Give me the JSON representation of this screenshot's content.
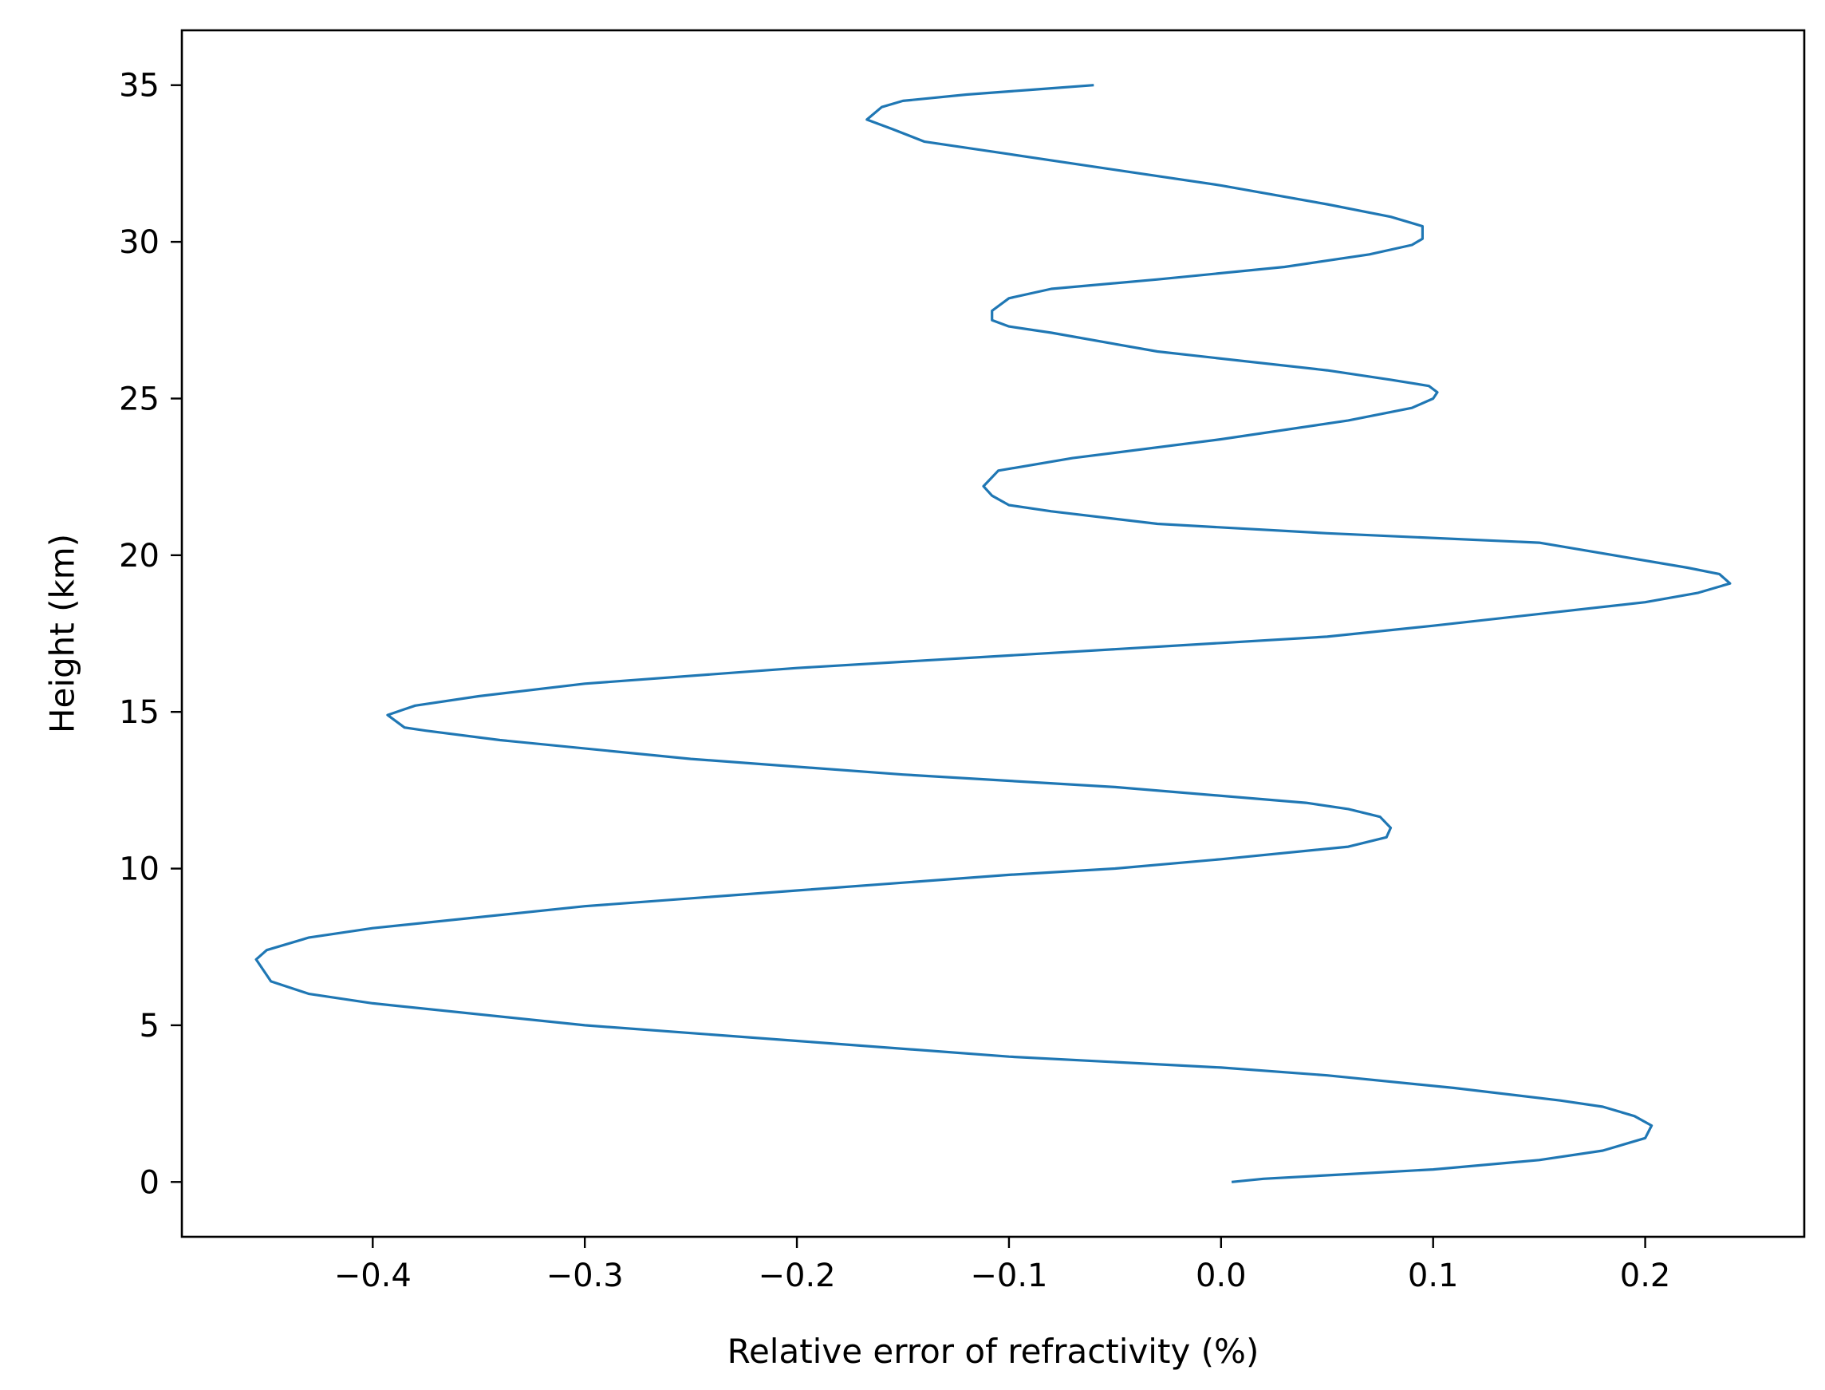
{
  "chart_data": {
    "type": "line",
    "title": "",
    "xlabel": "Relative error of refractivity (%)",
    "ylabel": "Height (km)",
    "xlim": [
      -0.49,
      0.275
    ],
    "ylim": [
      -1.75,
      36.75
    ],
    "grid": false,
    "legend": "none",
    "x_ticks": [
      -0.4,
      -0.3,
      -0.2,
      -0.1,
      0.0,
      0.1,
      0.2
    ],
    "x_tick_labels": [
      "−0.4",
      "−0.3",
      "−0.2",
      "−0.1",
      "0.0",
      "0.1",
      "0.2"
    ],
    "y_ticks": [
      0,
      5,
      10,
      15,
      20,
      25,
      30,
      35
    ],
    "y_tick_labels": [
      "0",
      "5",
      "10",
      "15",
      "20",
      "25",
      "30",
      "35"
    ],
    "series": [
      {
        "color": "#1f77b4",
        "x": [
          0.005,
          0.02,
          0.06,
          0.1,
          0.15,
          0.18,
          0.2,
          0.203,
          0.195,
          0.18,
          0.16,
          0.11,
          0.05,
          0.0,
          -0.1,
          -0.2,
          -0.3,
          -0.4,
          -0.43,
          -0.448,
          -0.455,
          -0.45,
          -0.43,
          -0.4,
          -0.3,
          -0.2,
          -0.1,
          -0.05,
          0.0,
          0.06,
          0.078,
          0.08,
          0.075,
          0.06,
          0.04,
          -0.05,
          -0.15,
          -0.25,
          -0.34,
          -0.375,
          -0.385,
          -0.393,
          -0.38,
          -0.35,
          -0.3,
          -0.2,
          -0.1,
          0.0,
          0.05,
          0.1,
          0.2,
          0.225,
          0.235,
          0.24,
          0.235,
          0.22,
          0.15,
          0.05,
          -0.03,
          -0.08,
          -0.1,
          -0.108,
          -0.112,
          -0.105,
          -0.07,
          0.0,
          0.06,
          0.09,
          0.1,
          0.102,
          0.098,
          0.08,
          0.05,
          -0.03,
          -0.08,
          -0.1,
          -0.108,
          -0.108,
          -0.1,
          -0.08,
          -0.03,
          0.03,
          0.07,
          0.09,
          0.095,
          0.095,
          0.08,
          0.05,
          0.0,
          -0.05,
          -0.1,
          -0.14,
          -0.155,
          -0.167,
          -0.16,
          -0.15,
          -0.12,
          -0.09,
          -0.06
        ],
        "y": [
          0.0,
          0.1,
          0.25,
          0.4,
          0.7,
          1.0,
          1.4,
          1.8,
          2.1,
          2.4,
          2.6,
          3.0,
          3.4,
          3.65,
          4.0,
          4.5,
          5.0,
          5.7,
          6.0,
          6.4,
          7.1,
          7.4,
          7.8,
          8.1,
          8.8,
          9.3,
          9.8,
          10.0,
          10.3,
          10.7,
          11.0,
          11.3,
          11.65,
          11.9,
          12.1,
          12.6,
          13.0,
          13.5,
          14.1,
          14.4,
          14.5,
          14.9,
          15.2,
          15.5,
          15.9,
          16.4,
          16.8,
          17.2,
          17.4,
          17.75,
          18.5,
          18.8,
          19.0,
          19.1,
          19.4,
          19.6,
          20.4,
          20.7,
          21.0,
          21.4,
          21.6,
          21.9,
          22.2,
          22.7,
          23.1,
          23.7,
          24.3,
          24.7,
          25.0,
          25.2,
          25.4,
          25.6,
          25.9,
          26.5,
          27.1,
          27.3,
          27.5,
          27.8,
          28.2,
          28.5,
          28.8,
          29.2,
          29.6,
          29.9,
          30.1,
          30.5,
          30.8,
          31.2,
          31.8,
          32.3,
          32.8,
          33.2,
          33.6,
          33.9,
          34.3,
          34.5,
          34.7,
          34.85,
          35.0
        ]
      }
    ]
  }
}
